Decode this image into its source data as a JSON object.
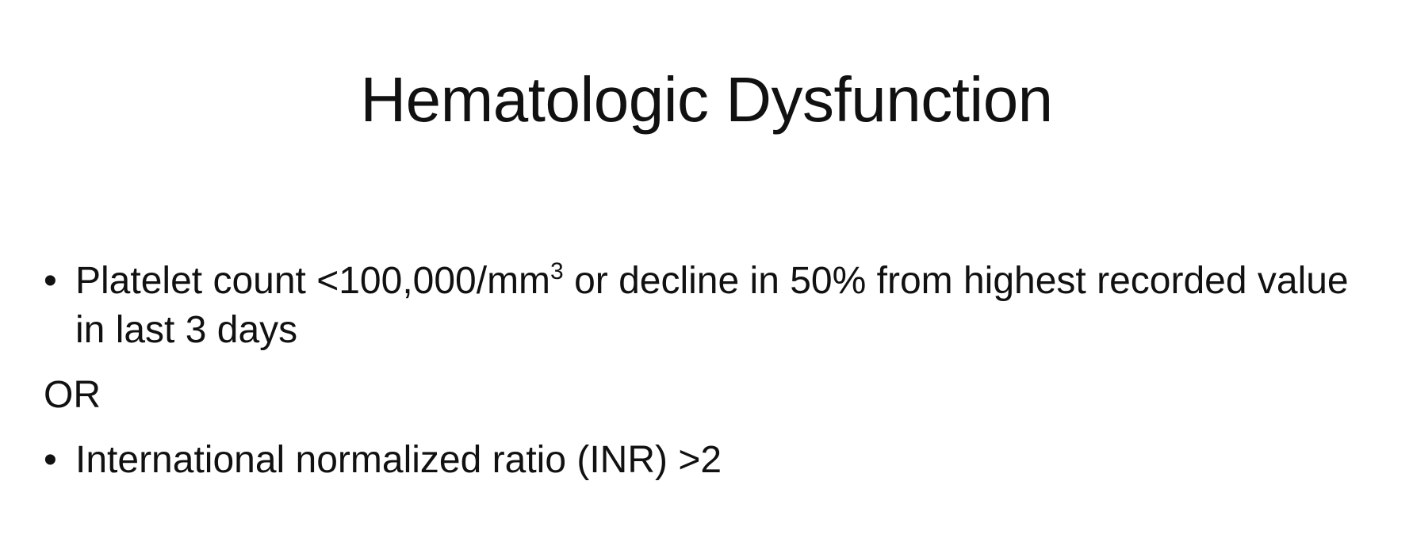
{
  "slide": {
    "title": "Hematologic Dysfunction",
    "bullets": [
      {
        "marker": "•",
        "before_sup": "Platelet count <100,000/mm",
        "sup": "3",
        "after_sup": " or decline in 50% from highest recorded value in last 3 days"
      },
      {
        "marker": "•",
        "text": "International normalized ratio (INR) >2"
      }
    ],
    "separator": "OR"
  }
}
